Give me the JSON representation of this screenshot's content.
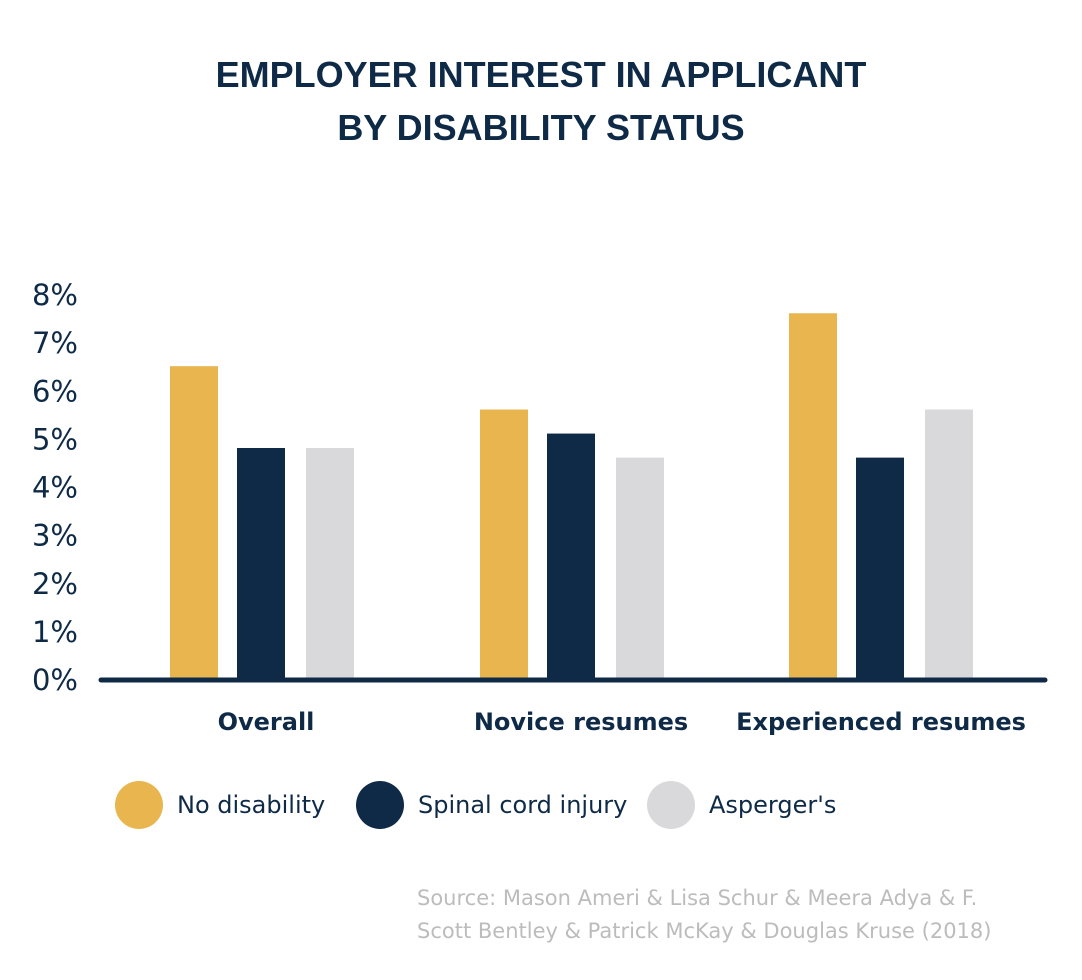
{
  "title_line1": "EMPLOYER INTEREST IN APPLICANT",
  "title_line2": "BY DISABILITY STATUS",
  "colors": {
    "no_disability": "#e8b54f",
    "spinal_cord_injury": "#0e2a47",
    "aspergers": "#d9d9db",
    "axis": "#0e2a47",
    "text": "#0e2a47",
    "source": "#bcbcbc"
  },
  "legend": [
    {
      "label": "No disability",
      "color": "#e8b54f"
    },
    {
      "label": "Spinal cord injury",
      "color": "#0e2a47"
    },
    {
      "label": "Asperger's",
      "color": "#d9d9db"
    }
  ],
  "source_line1": "Source: Mason Ameri & Lisa Schur & Meera Adya & F.",
  "source_line2": "Scott Bentley & Patrick McKay & Douglas Kruse (2018)",
  "chart_data": {
    "type": "bar",
    "title": "EMPLOYER INTEREST IN APPLICANT BY DISABILITY STATUS",
    "categories": [
      "Overall",
      "Novice resumes",
      "Experienced resumes"
    ],
    "series": [
      {
        "name": "No disability",
        "values": [
          6.5,
          5.6,
          7.6
        ]
      },
      {
        "name": "Spinal cord injury",
        "values": [
          4.8,
          5.1,
          4.6
        ]
      },
      {
        "name": "Asperger's",
        "values": [
          4.8,
          4.6,
          5.6
        ]
      }
    ],
    "yticks": [
      "0%",
      "1%",
      "2%",
      "3%",
      "4%",
      "5%",
      "6%",
      "7%",
      "8%"
    ],
    "ylim": [
      0,
      8
    ],
    "xlabel": "",
    "ylabel": "",
    "grid": false,
    "legend_position": "bottom-left"
  }
}
